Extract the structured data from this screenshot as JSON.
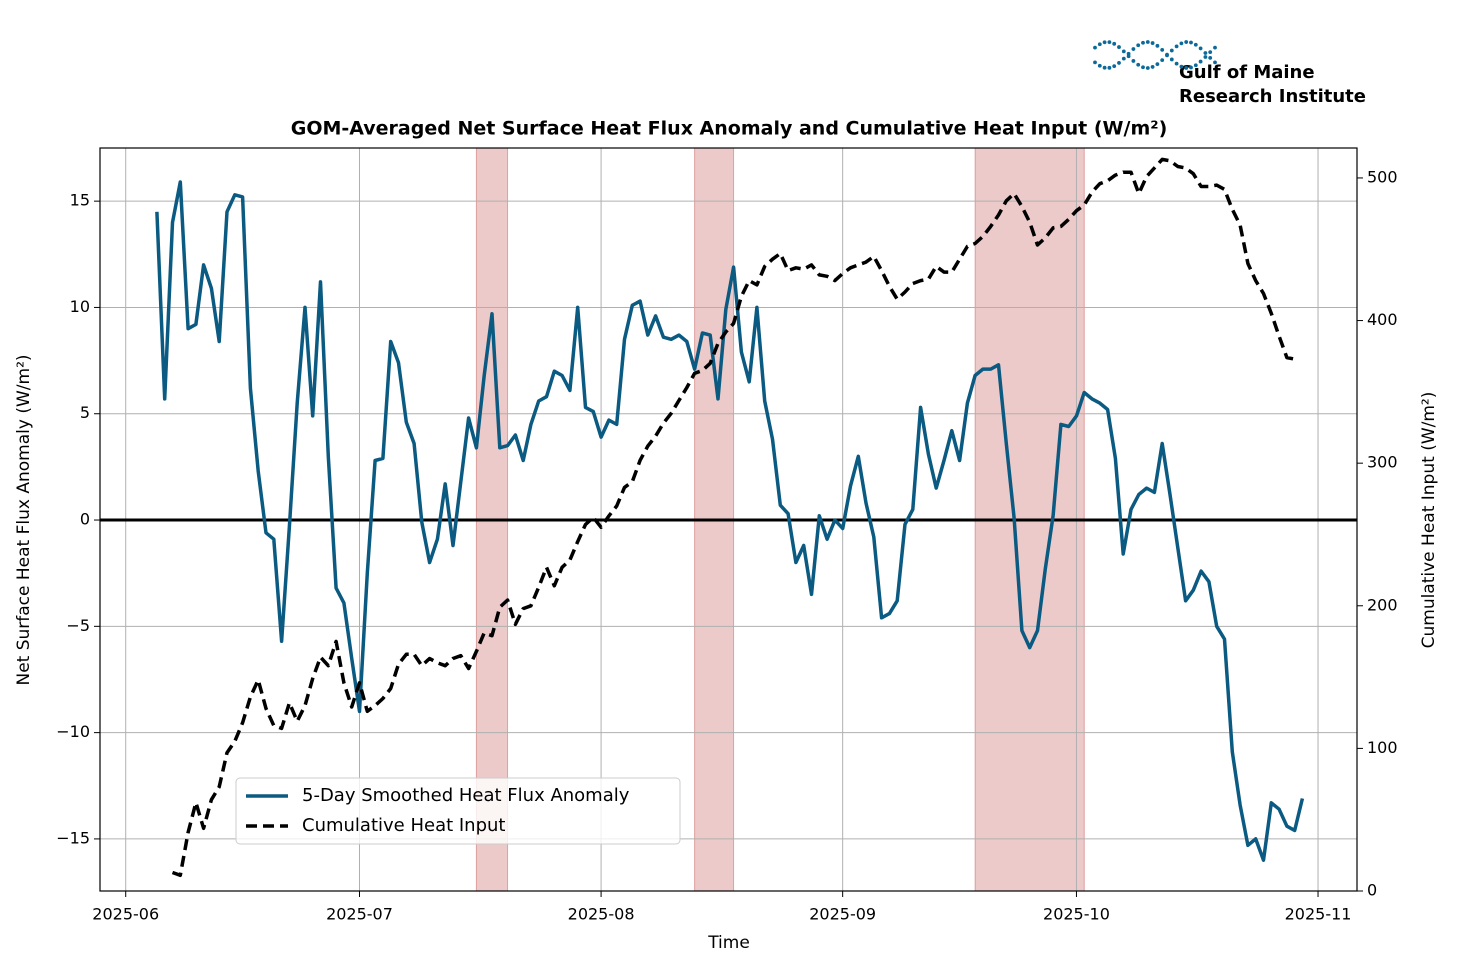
{
  "chart_data": {
    "type": "line",
    "title": "GOM-Averaged Net Surface Heat Flux Anomaly and Cumulative Heat Input (W/m²)",
    "x_label": "Time",
    "y_label": "Net Surface Heat Flux Anomaly (W/m²)",
    "y2_label": "Cumulative Heat Input (W/m²)",
    "logo": {
      "line1": "Gulf of Maine",
      "line2": "Research Institute",
      "color": "#0b6a99"
    },
    "xlim": [
      -3.3,
      158
    ],
    "xticks": [
      {
        "value": 0,
        "label": "2025-06"
      },
      {
        "value": 30,
        "label": "2025-07"
      },
      {
        "value": 61,
        "label": "2025-08"
      },
      {
        "value": 92,
        "label": "2025-09"
      },
      {
        "value": 122,
        "label": "2025-10"
      },
      {
        "value": 153,
        "label": "2025-11"
      }
    ],
    "ylim": [
      -17.45,
      17.5
    ],
    "yticks": [
      {
        "value": -15,
        "label": "−15"
      },
      {
        "value": -10,
        "label": "−10"
      },
      {
        "value": -5,
        "label": "−5"
      },
      0,
      5,
      10,
      15
    ],
    "y2lim": [
      0,
      521
    ],
    "y2ticks": [
      0,
      100,
      200,
      300,
      400,
      500
    ],
    "grid": true,
    "legend": "lower left",
    "hline": 0,
    "shaded_spans": [
      [
        45,
        49
      ],
      [
        73,
        78
      ],
      [
        109,
        123
      ]
    ],
    "span_color": "#c0504d",
    "x": [
      4,
      5,
      6,
      7,
      8,
      9,
      10,
      11,
      12,
      13,
      14,
      15,
      16,
      17,
      18,
      19,
      20,
      21,
      22,
      23,
      24,
      25,
      26,
      27,
      28,
      29,
      30,
      31,
      32,
      33,
      34,
      35,
      36,
      37,
      38,
      39,
      40,
      41,
      42,
      43,
      44,
      45,
      46,
      47,
      48,
      49,
      50,
      51,
      52,
      53,
      54,
      55,
      56,
      57,
      58,
      59,
      60,
      61,
      62,
      63,
      64,
      65,
      66,
      67,
      68,
      69,
      70,
      71,
      72,
      73,
      74,
      75,
      76,
      77,
      78,
      79,
      80,
      81,
      82,
      83,
      84,
      85,
      86,
      87,
      88,
      89,
      90,
      91,
      92,
      93,
      94,
      95,
      96,
      97,
      98,
      99,
      100,
      101,
      102,
      103,
      104,
      105,
      106,
      107,
      108,
      109,
      110,
      111,
      112,
      113,
      114,
      115,
      116,
      117,
      118,
      119,
      120,
      121,
      122,
      123,
      124,
      125,
      126,
      127,
      128,
      129,
      130,
      131,
      132,
      133,
      134,
      135,
      136,
      137,
      138,
      139,
      140,
      141,
      142,
      143,
      144,
      145,
      146,
      147,
      148,
      149,
      150,
      151
    ],
    "series": [
      {
        "name": "5-Day Smoothed Heat Flux Anomaly",
        "color": "#0b5a82",
        "linestyle": "solid",
        "axis": "y",
        "values": [
          14.5,
          5.7,
          14,
          15.9,
          9,
          9.2,
          12,
          10.9,
          8.4,
          14.5,
          15.3,
          15.2,
          6.2,
          2.3,
          -0.6,
          -0.9,
          -5.7,
          -0.3,
          5.5,
          10,
          4.9,
          11.2,
          3,
          -3.2,
          -3.9,
          -6.5,
          -9,
          -2.5,
          2.8,
          2.9,
          8.4,
          7.4,
          4.6,
          3.6,
          -0.1,
          -2,
          -0.9,
          1.7,
          -1.2,
          1.8,
          4.8,
          3.4,
          6.8,
          9.7,
          3.4,
          3.5,
          4,
          2.8,
          4.5,
          5.6,
          5.8,
          7,
          6.8,
          6.1,
          10,
          5.3,
          5.1,
          3.9,
          4.7,
          4.5,
          8.5,
          10.1,
          10.3,
          8.7,
          9.6,
          8.6,
          8.5,
          8.7,
          8.4,
          7.1,
          8.8,
          8.7,
          5.7,
          9.9,
          11.9,
          7.9,
          6.5,
          10,
          5.6,
          3.8,
          0.7,
          0.3,
          -2,
          -1.2,
          -3.5,
          0.2,
          -0.9,
          0,
          -0.4,
          1.6,
          3,
          0.8,
          -0.8,
          -4.6,
          -4.4,
          -3.8,
          -0.2,
          0.5,
          5.3,
          3.1,
          1.5,
          2.8,
          4.2,
          2.8,
          5.5,
          6.8,
          7.1,
          7.1,
          7.3,
          3.6,
          0.1,
          -5.2,
          -6,
          -5.2,
          -2.3,
          0.2,
          4.5,
          4.4,
          4.9,
          6,
          5.7,
          5.5,
          5.2,
          2.9,
          -1.6,
          0.5,
          1.2,
          1.5,
          1.3,
          3.6,
          1.2,
          -1.3,
          -3.8,
          -3.3,
          -2.4,
          -2.9,
          -5,
          -5.6,
          -10.9,
          -13.4,
          -15.3,
          -15,
          -16,
          -13.3,
          -13.6,
          -14.4,
          -14.6,
          -13.1
        ]
      },
      {
        "name": "Cumulative Heat Input",
        "color": "#000000",
        "linestyle": "dashed",
        "axis": "y2",
        "values": [
          null,
          null,
          13,
          11,
          41,
          62,
          44,
          64,
          73,
          97,
          105,
          118,
          136,
          148,
          128,
          116,
          114,
          132,
          119,
          130,
          149,
          164,
          158,
          175,
          146,
          129,
          146,
          126,
          130,
          135,
          142,
          159,
          166,
          166,
          158,
          163,
          160,
          158,
          163,
          165,
          156,
          168,
          181,
          179,
          199,
          204,
          187,
          198,
          200,
          213,
          227,
          214,
          227,
          232,
          245,
          257,
          262,
          255,
          263,
          270,
          283,
          287,
          302,
          312,
          319,
          328,
          335,
          344,
          353,
          363,
          365,
          370,
          384,
          392,
          398,
          417,
          428,
          425,
          438,
          443,
          447,
          435,
          437,
          436,
          439,
          432,
          431,
          428,
          433,
          437,
          439,
          441,
          445,
          435,
          424,
          415,
          420,
          426,
          428,
          429,
          438,
          434,
          434,
          443,
          452,
          454,
          459,
          466,
          474,
          484,
          489,
          480,
          469,
          453,
          458,
          465,
          466,
          471,
          477,
          481,
          490,
          496,
          498,
          502,
          504,
          504,
          489,
          501,
          507,
          513,
          512,
          508,
          507,
          503,
          494,
          494,
          495,
          492,
          478,
          467,
          440,
          428,
          419,
          405,
          389,
          374,
          373,
          null
        ]
      }
    ]
  }
}
